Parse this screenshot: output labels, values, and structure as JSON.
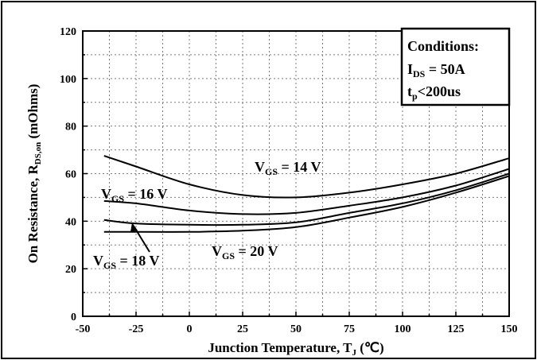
{
  "chart_data": {
    "type": "line",
    "xlabel": "Junction Temperature, T",
    "xlabel_sub": "J",
    "xlabel_unit": " (℃)",
    "ylabel": "On Resistance, R",
    "ylabel_sub": "DS,on",
    "ylabel_unit": " (mOhms)",
    "xlim": [
      -50,
      150
    ],
    "ylim": [
      0,
      120
    ],
    "xticks": [
      -50,
      -25,
      0,
      25,
      50,
      75,
      100,
      125,
      150
    ],
    "yticks": [
      0,
      20,
      40,
      60,
      80,
      100,
      120
    ],
    "grid": true,
    "series": [
      {
        "name": "V_GS = 14 V",
        "x": [
          -40,
          -25,
          0,
          25,
          50,
          75,
          100,
          125,
          150
        ],
        "values": [
          67.5,
          63,
          55.5,
          51,
          50,
          52,
          55.5,
          60,
          66.5
        ]
      },
      {
        "name": "V_GS = 16 V",
        "x": [
          -40,
          -25,
          0,
          25,
          50,
          75,
          100,
          125,
          150
        ],
        "values": [
          48.5,
          47.5,
          44.5,
          43,
          43.5,
          46.5,
          50,
          55,
          62
        ]
      },
      {
        "name": "V_GS = 18 V",
        "x": [
          -40,
          -25,
          0,
          25,
          50,
          75,
          100,
          125,
          150
        ],
        "values": [
          40.5,
          39,
          38.5,
          38.5,
          39.5,
          43.5,
          47.5,
          53,
          60
        ]
      },
      {
        "name": "V_GS = 20 V",
        "x": [
          -40,
          -25,
          0,
          25,
          50,
          75,
          100,
          125,
          150
        ],
        "values": [
          35.5,
          35.5,
          35.5,
          36,
          37.5,
          41.5,
          46,
          52,
          59
        ]
      }
    ],
    "annotations": [
      {
        "main": "V",
        "sub": "GS",
        "rest": " = 14 V"
      },
      {
        "main": "V",
        "sub": "GS",
        "rest": " = 16 V"
      },
      {
        "main": "V",
        "sub": "GS",
        "rest": " = 18 V"
      },
      {
        "main": "V",
        "sub": "GS",
        "rest": " = 20 V"
      }
    ],
    "conditions": {
      "title": "Conditions:",
      "line1": {
        "main": "I",
        "sub": "DS",
        "rest": " = 50A"
      },
      "line2": {
        "main": "t",
        "sub": "p",
        "rest": "<200us"
      }
    }
  }
}
